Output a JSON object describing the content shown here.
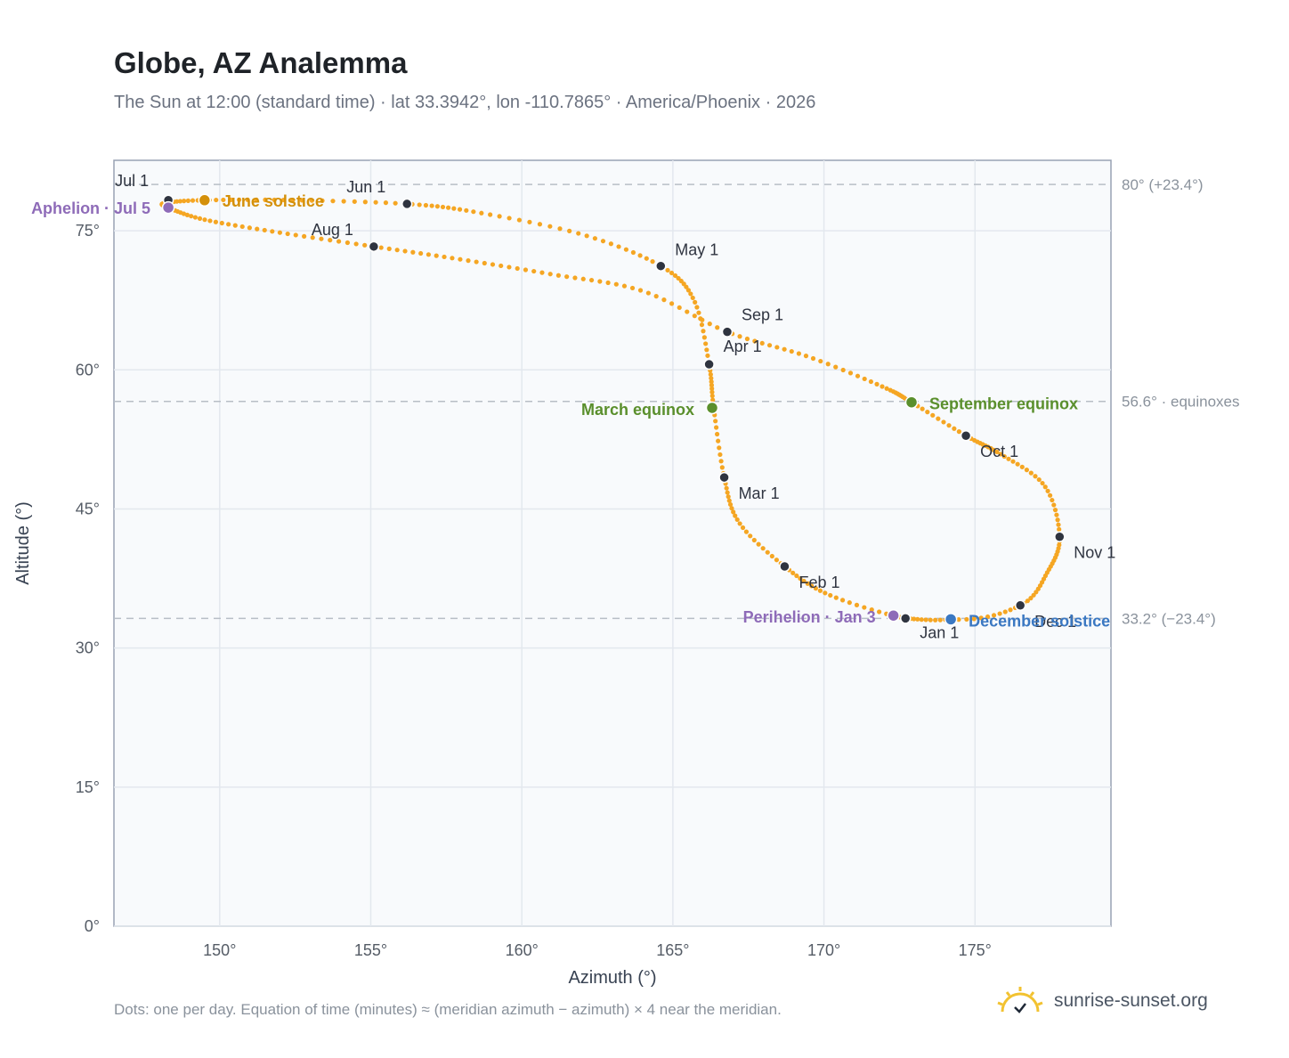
{
  "title": "Globe, AZ Analemma",
  "subtitle": "The Sun at 12:00 (standard time) · lat 33.3942°, lon -110.7865° · America/Phoenix · 2026",
  "footnote": "Dots: one per day. Equation of time (minutes) ≈ (meridian azimuth − azimuth) × 4 near the meridian.",
  "brand": {
    "name": "sunrise-sunset.org",
    "icon": "sunrise-logo-icon"
  },
  "colors": {
    "curve": "#f5a623",
    "month_marker": "#2f3440",
    "june_solstice": "#d4900a",
    "december_solstice": "#3b78c2",
    "equinox": "#5a8f2c",
    "aphelion_perihelion": "#8e6bb8",
    "plot_background": "#f8fafc",
    "grid": "#e3e8ee",
    "reference_line": "#b8bec6"
  },
  "chart_data": {
    "type": "scatter",
    "xlabel": "Azimuth (°)",
    "ylabel": "Altitude (°)",
    "xlim": [
      146.5,
      179.5
    ],
    "ylim": [
      0,
      82.6
    ],
    "x_ticks": [
      150,
      155,
      160,
      165,
      170,
      175
    ],
    "x_tick_labels": [
      "150°",
      "155°",
      "160°",
      "165°",
      "170°",
      "175°"
    ],
    "y_ticks": [
      0,
      15,
      30,
      45,
      60,
      75
    ],
    "y_tick_labels": [
      "0°",
      "15°",
      "30°",
      "45°",
      "60°",
      "75°"
    ],
    "grid": true,
    "series": [
      {
        "points": [
          [
            172.7,
            33.2
          ],
          [
            170.2,
            35.7
          ],
          [
            168.7,
            38.8
          ],
          [
            167.2,
            43.5
          ],
          [
            166.7,
            48.4
          ],
          [
            166.35,
            55.9
          ],
          [
            166.2,
            60.6
          ],
          [
            165.7,
            67.5
          ],
          [
            164.6,
            71.2
          ],
          [
            162.0,
            74.6
          ],
          [
            158.5,
            77.0
          ],
          [
            156.2,
            77.9
          ],
          [
            152.5,
            78.3
          ],
          [
            149.5,
            78.3
          ],
          [
            148.2,
            78.0
          ],
          [
            148.3,
            77.5
          ],
          [
            149.5,
            76.2
          ],
          [
            152.0,
            74.8
          ],
          [
            155.1,
            73.3
          ],
          [
            158.0,
            71.9
          ],
          [
            161.0,
            70.3
          ],
          [
            164.0,
            68.5
          ],
          [
            166.8,
            64.1
          ],
          [
            169.5,
            61.4
          ],
          [
            172.0,
            58.1
          ],
          [
            172.9,
            56.5
          ],
          [
            174.7,
            52.9
          ],
          [
            175.8,
            51.0
          ],
          [
            177.3,
            47.5
          ],
          [
            177.8,
            42.0
          ],
          [
            177.4,
            38.2
          ],
          [
            176.5,
            34.6
          ],
          [
            174.2,
            33.1
          ],
          [
            172.7,
            33.2
          ]
        ]
      }
    ],
    "month_markers": [
      {
        "label": "Jan 1",
        "x": 172.7,
        "y": 33.2
      },
      {
        "label": "Feb 1",
        "x": 168.7,
        "y": 38.8
      },
      {
        "label": "Mar 1",
        "x": 166.7,
        "y": 48.4
      },
      {
        "label": "Apr 1",
        "x": 166.2,
        "y": 60.6
      },
      {
        "label": "May 1",
        "x": 164.6,
        "y": 71.2
      },
      {
        "label": "Jun 1",
        "x": 156.2,
        "y": 77.9
      },
      {
        "label": "Jul 1",
        "x": 148.3,
        "y": 78.3
      },
      {
        "label": "Aug 1",
        "x": 155.1,
        "y": 73.3
      },
      {
        "label": "Sep 1",
        "x": 166.8,
        "y": 64.1
      },
      {
        "label": "Oct 1",
        "x": 174.7,
        "y": 52.9
      },
      {
        "label": "Nov 1",
        "x": 177.8,
        "y": 42.0
      },
      {
        "label": "Dec 1",
        "x": 176.5,
        "y": 34.6
      }
    ],
    "events": [
      {
        "label": "June solstice",
        "x": 149.5,
        "y": 78.3,
        "color_key": "june_solstice"
      },
      {
        "label": "December solstice",
        "x": 174.2,
        "y": 33.1,
        "color_key": "december_solstice"
      },
      {
        "label": "March equinox",
        "x": 166.3,
        "y": 55.9,
        "color_key": "equinox"
      },
      {
        "label": "September equinox",
        "x": 172.9,
        "y": 56.5,
        "color_key": "equinox"
      },
      {
        "label": "Aphelion · Jul 5",
        "x": 148.3,
        "y": 77.5,
        "color_key": "aphelion_perihelion"
      },
      {
        "label": "Perihelion · Jan 3",
        "x": 172.3,
        "y": 33.5,
        "color_key": "aphelion_perihelion"
      }
    ],
    "reference_lines": [
      {
        "y": 80.0,
        "label": "80° (+23.4°)"
      },
      {
        "y": 56.6,
        "label": "56.6° · equinoxes"
      },
      {
        "y": 33.2,
        "label": "33.2° (−23.4°)"
      }
    ]
  }
}
